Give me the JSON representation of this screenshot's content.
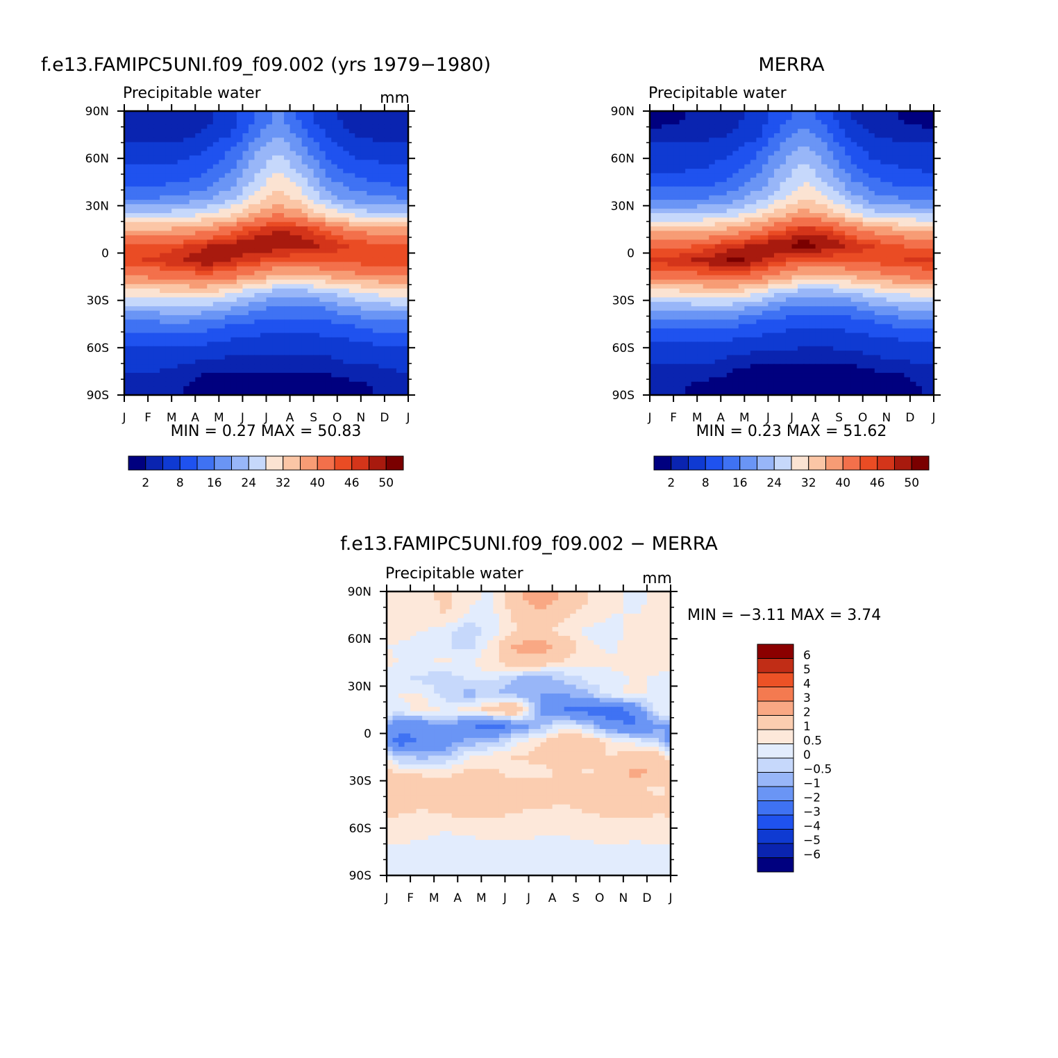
{
  "chart_data": [
    {
      "type": "heatmap",
      "title": "f.e13.FAMIPC5UNI.f09_f09.002 (yrs 1979−1980)",
      "variable": "Precipitable water",
      "units": "mm",
      "x_ticks": [
        "J",
        "F",
        "M",
        "A",
        "M",
        "J",
        "J",
        "A",
        "S",
        "O",
        "N",
        "D",
        "J"
      ],
      "y_ticks": [
        "90N",
        "60N",
        "30N",
        "0",
        "30S",
        "60S",
        "90S"
      ],
      "stats": "MIN =    0.27  MAX =   50.83",
      "min": 0.27,
      "max": 50.83,
      "colorbar_ticks": [
        "2",
        "8",
        "16",
        "24",
        "32",
        "40",
        "46",
        "50"
      ],
      "colorbar_levels": [
        2,
        4,
        8,
        12,
        16,
        20,
        24,
        28,
        32,
        36,
        40,
        44,
        46,
        48,
        50
      ],
      "field": {
        "lat": [
          85,
          75,
          65,
          55,
          45,
          35,
          25,
          15,
          5,
          -5,
          -15,
          -25,
          -35,
          -45,
          -55,
          -65,
          -75,
          -85
        ],
        "month_mid": [
          0.5,
          1.5,
          2.5,
          3.5,
          4.5,
          5.5,
          6.5,
          7.5,
          8.5,
          9.5,
          10.5,
          11.5
        ],
        "values": [
          [
            2,
            2,
            2,
            3,
            6,
            12,
            17,
            11,
            5,
            3,
            2,
            2
          ],
          [
            3,
            3,
            3,
            5,
            8,
            15,
            20,
            14,
            8,
            4,
            3,
            3
          ],
          [
            6,
            6,
            6,
            8,
            12,
            19,
            24,
            18,
            11,
            7,
            6,
            6
          ],
          [
            8,
            8,
            9,
            11,
            15,
            22,
            27,
            22,
            14,
            10,
            9,
            8
          ],
          [
            11,
            11,
            12,
            14,
            18,
            25,
            31,
            26,
            18,
            14,
            12,
            11
          ],
          [
            16,
            16,
            17,
            19,
            23,
            29,
            34,
            30,
            23,
            18,
            17,
            16
          ],
          [
            25,
            25,
            26,
            28,
            31,
            36,
            40,
            37,
            31,
            27,
            25,
            25
          ],
          [
            36,
            36,
            37,
            39,
            42,
            46,
            48,
            47,
            44,
            40,
            38,
            37
          ],
          [
            44,
            44,
            46,
            48,
            49,
            50,
            50,
            49,
            48,
            46,
            45,
            44
          ],
          [
            46,
            47,
            48,
            50,
            48,
            46,
            44,
            44,
            44,
            45,
            46,
            46
          ],
          [
            40,
            41,
            42,
            43,
            41,
            38,
            35,
            35,
            36,
            38,
            39,
            40
          ],
          [
            30,
            31,
            32,
            32,
            29,
            25,
            22,
            22,
            24,
            27,
            29,
            30
          ],
          [
            22,
            22,
            23,
            22,
            20,
            17,
            15,
            15,
            16,
            19,
            21,
            22
          ],
          [
            15,
            15,
            15,
            14,
            12,
            11,
            10,
            10,
            11,
            12,
            14,
            15
          ],
          [
            10,
            10,
            10,
            9,
            8,
            7,
            6,
            6,
            7,
            8,
            9,
            10
          ],
          [
            6,
            6,
            5,
            5,
            4,
            4,
            4,
            4,
            4,
            5,
            5,
            6
          ],
          [
            4,
            4,
            3,
            2,
            2,
            2,
            2,
            2,
            2,
            3,
            3,
            4
          ],
          [
            3,
            3,
            2,
            1,
            1,
            1,
            1,
            1,
            1,
            1,
            2,
            3
          ]
        ]
      }
    },
    {
      "type": "heatmap",
      "title": "MERRA",
      "variable": "Precipitable water",
      "units": "",
      "x_ticks": [
        "J",
        "F",
        "M",
        "A",
        "M",
        "J",
        "J",
        "A",
        "S",
        "O",
        "N",
        "D",
        "J"
      ],
      "y_ticks": [
        "90N",
        "60N",
        "30N",
        "0",
        "30S",
        "60S",
        "90S"
      ],
      "stats": "MIN =    0.23  MAX =   51.62",
      "min": 0.23,
      "max": 51.62,
      "colorbar_ticks": [
        "2",
        "8",
        "16",
        "24",
        "32",
        "40",
        "46",
        "50"
      ],
      "colorbar_levels": [
        2,
        4,
        8,
        12,
        16,
        20,
        24,
        28,
        32,
        36,
        40,
        44,
        46,
        48,
        50
      ],
      "field": {
        "lat": [
          85,
          75,
          65,
          55,
          45,
          35,
          25,
          15,
          5,
          -5,
          -15,
          -25,
          -35,
          -45,
          -55,
          -65,
          -75,
          -85
        ],
        "month_mid": [
          0.5,
          1.5,
          2.5,
          3.5,
          4.5,
          5.5,
          6.5,
          7.5,
          8.5,
          9.5,
          10.5,
          11.5
        ],
        "values": [
          [
            1,
            2,
            2,
            3,
            5,
            10,
            15,
            10,
            4,
            2,
            2,
            1
          ],
          [
            3,
            3,
            3,
            4,
            7,
            13,
            18,
            13,
            7,
            4,
            3,
            3
          ],
          [
            5,
            5,
            6,
            7,
            11,
            17,
            22,
            17,
            10,
            6,
            5,
            5
          ],
          [
            7,
            7,
            8,
            10,
            14,
            20,
            25,
            20,
            13,
            9,
            8,
            7
          ],
          [
            10,
            10,
            11,
            13,
            17,
            23,
            28,
            24,
            17,
            13,
            11,
            10
          ],
          [
            15,
            15,
            16,
            18,
            22,
            27,
            32,
            28,
            22,
            17,
            16,
            15
          ],
          [
            23,
            23,
            24,
            26,
            29,
            34,
            38,
            35,
            29,
            25,
            24,
            23
          ],
          [
            34,
            34,
            35,
            37,
            40,
            44,
            47,
            46,
            42,
            38,
            36,
            35
          ],
          [
            43,
            43,
            45,
            47,
            49,
            50,
            51,
            50,
            48,
            46,
            44,
            43
          ],
          [
            47,
            48,
            49,
            51,
            49,
            46,
            44,
            44,
            44,
            45,
            46,
            47
          ],
          [
            41,
            42,
            43,
            44,
            42,
            38,
            35,
            35,
            36,
            38,
            40,
            41
          ],
          [
            30,
            31,
            32,
            32,
            29,
            25,
            22,
            22,
            24,
            27,
            29,
            30
          ],
          [
            21,
            21,
            22,
            21,
            19,
            16,
            14,
            14,
            15,
            18,
            20,
            21
          ],
          [
            14,
            14,
            14,
            13,
            11,
            10,
            9,
            9,
            10,
            11,
            13,
            14
          ],
          [
            9,
            9,
            9,
            8,
            7,
            6,
            5,
            5,
            6,
            7,
            8,
            9
          ],
          [
            5,
            5,
            5,
            4,
            3,
            3,
            3,
            3,
            3,
            4,
            5,
            5
          ],
          [
            3,
            3,
            3,
            2,
            1,
            1,
            1,
            1,
            1,
            2,
            2,
            3
          ],
          [
            2,
            2,
            1,
            1,
            1,
            0.5,
            0.5,
            0.5,
            0.5,
            1,
            1,
            2
          ]
        ]
      }
    },
    {
      "type": "heatmap",
      "title": "f.e13.FAMIPC5UNI.f09_f09.002 − MERRA",
      "variable": "Precipitable water",
      "units": "mm",
      "x_ticks": [
        "J",
        "F",
        "M",
        "A",
        "M",
        "J",
        "J",
        "A",
        "S",
        "O",
        "N",
        "D",
        "J"
      ],
      "y_ticks": [
        "90N",
        "60N",
        "30N",
        "0",
        "30S",
        "60S",
        "90S"
      ],
      "stats": "MIN =   −3.11  MAX =    3.74",
      "min": -3.11,
      "max": 3.74,
      "colorbar_ticks": [
        "6",
        "5",
        "4",
        "3",
        "2",
        "1",
        "0.5",
        "0",
        "−0.5",
        "−1",
        "−2",
        "−3",
        "−4",
        "−5",
        "−6"
      ],
      "colorbar_levels": [
        -6,
        -5,
        -4,
        -3,
        -2,
        -1,
        -0.5,
        0,
        0.5,
        1,
        2,
        3,
        4,
        5,
        6
      ],
      "field": {
        "lat": [
          85,
          75,
          65,
          55,
          45,
          35,
          25,
          15,
          5,
          -5,
          -15,
          -25,
          -35,
          -45,
          -55,
          -65,
          -75,
          -85
        ],
        "month_mid": [
          0.5,
          1.5,
          2.5,
          3.5,
          4.5,
          5.5,
          6.5,
          7.5,
          8.5,
          9.5,
          10.5,
          11.5
        ],
        "values": [
          [
            0.5,
            0.7,
            1.2,
            0.6,
            0.4,
            1.8,
            2.6,
            1.7,
            1.0,
            0.6,
            0.4,
            0.6
          ],
          [
            0.6,
            0.8,
            1.0,
            0.4,
            0.4,
            1.2,
            1.6,
            1.1,
            0.7,
            0.5,
            0.5,
            0.6
          ],
          [
            0.7,
            0.5,
            0.2,
            -0.4,
            0.3,
            1.0,
            1.1,
            0.8,
            0.4,
            0.4,
            0.6,
            0.8
          ],
          [
            0.4,
            0.3,
            0.1,
            -0.2,
            0.8,
            2.3,
            2.5,
            1.6,
            0.6,
            0.4,
            0.7,
            0.6
          ],
          [
            0.5,
            0.5,
            0.6,
            0.5,
            0.9,
            1.5,
            1.4,
            0.9,
            0.6,
            0.6,
            0.8,
            0.7
          ],
          [
            0.3,
            -0.2,
            -0.3,
            0.1,
            0.2,
            -0.6,
            -0.7,
            -0.4,
            0.2,
            0.3,
            0.6,
            0.4
          ],
          [
            0.5,
            0.6,
            -0.3,
            -0.7,
            -0.5,
            -0.8,
            -1.0,
            -0.9,
            -0.6,
            0.4,
            0.6,
            0.4
          ],
          [
            0.4,
            0.6,
            0.5,
            0.6,
            1.6,
            2.1,
            -1.2,
            -2.1,
            -2.6,
            -2.4,
            -1.8,
            0.5
          ],
          [
            -1.4,
            -1.6,
            -0.9,
            -1.9,
            -2.6,
            -1.4,
            -0.7,
            0.3,
            -0.3,
            -1.8,
            -2.2,
            -1.1
          ],
          [
            -2.6,
            -1.9,
            -1.5,
            -0.8,
            -0.6,
            0.3,
            0.9,
            1.8,
            1.6,
            0.7,
            0.3,
            -0.4
          ],
          [
            -0.5,
            -0.6,
            -0.4,
            0.5,
            0.8,
            1.1,
            1.2,
            1.3,
            1.2,
            1.0,
            1.4,
            1.6
          ],
          [
            1.0,
            0.9,
            0.7,
            1.3,
            1.1,
            0.6,
            0.8,
            1.1,
            0.9,
            1.2,
            2.4,
            1.7
          ],
          [
            1.5,
            1.6,
            1.4,
            1.5,
            1.6,
            1.5,
            1.3,
            1.1,
            1.4,
            1.6,
            1.3,
            0.8
          ],
          [
            1.3,
            1.1,
            1.4,
            1.6,
            1.5,
            1.3,
            1.1,
            1.0,
            1.2,
            1.5,
            1.6,
            1.2
          ],
          [
            0.9,
            0.7,
            0.8,
            0.9,
            1.0,
            0.7,
            0.6,
            0.7,
            0.8,
            0.9,
            0.8,
            0.9
          ],
          [
            0.7,
            0.6,
            0.4,
            0.5,
            0.6,
            0.6,
            0.5,
            0.5,
            0.6,
            0.7,
            0.6,
            0.7
          ],
          [
            0.3,
            0.2,
            0.2,
            0.3,
            0.3,
            0.2,
            0.2,
            0.3,
            0.3,
            0.3,
            0.3,
            0.4
          ],
          [
            0.3,
            0.3,
            0.4,
            0.3,
            0.3,
            0.4,
            0.3,
            0.3,
            0.3,
            0.4,
            0.3,
            0.3
          ]
        ]
      }
    }
  ],
  "palettes": {
    "absolute": [
      "#00007f",
      "#0a24b0",
      "#0f3ad2",
      "#1f52ef",
      "#3f72f3",
      "#6a95f5",
      "#98b6f8",
      "#c6d8fb",
      "#fbe3d2",
      "#fbc6a6",
      "#f79c75",
      "#f3704b",
      "#ea4c24",
      "#d4351a",
      "#a81a0e",
      "#7a0000"
    ],
    "difference": [
      "#00007f",
      "#0a24b0",
      "#0f3ad2",
      "#1f52ef",
      "#3f72f3",
      "#6a95f5",
      "#98b6f8",
      "#c6d8fb",
      "#e2ecfd",
      "#fde8da",
      "#fbcdb0",
      "#f9a884",
      "#f47a50",
      "#ec5226",
      "#c12d16",
      "#8b0000"
    ]
  }
}
